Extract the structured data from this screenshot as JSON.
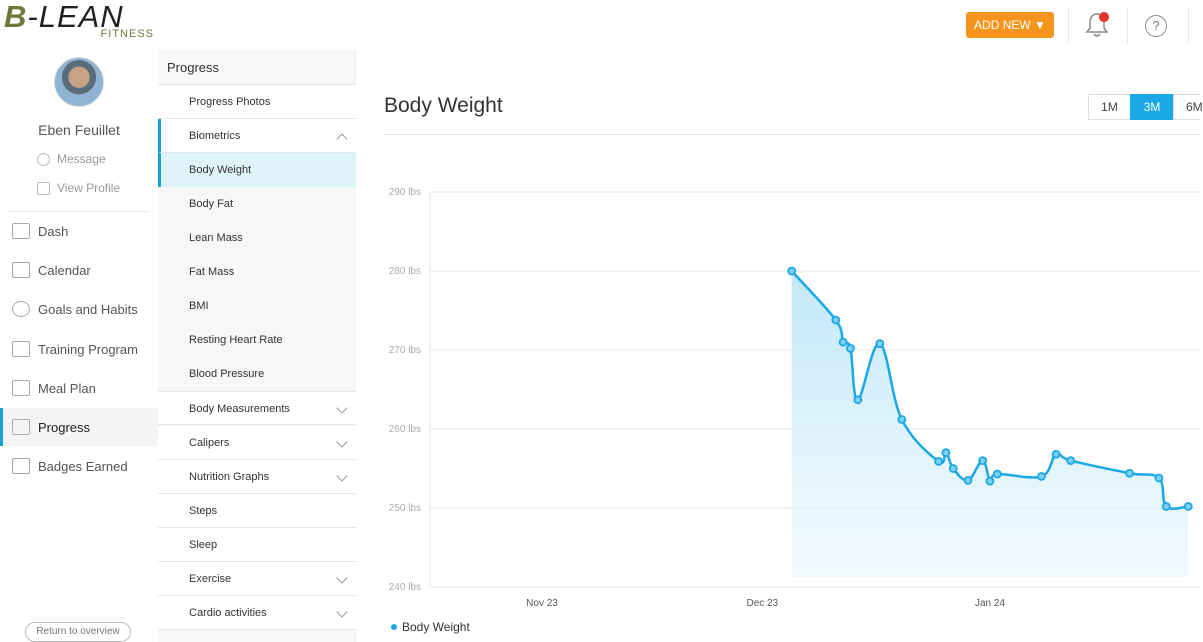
{
  "brand": {
    "main_b": "B",
    "main_rest": "-LEAN",
    "sub": "FITNESS"
  },
  "user": {
    "name": "Eben Feuillet",
    "message": "Message",
    "view_profile": "View Profile"
  },
  "nav": [
    {
      "label": "Dash",
      "icon": "rocket-icon"
    },
    {
      "label": "Calendar",
      "icon": "calendar-icon"
    },
    {
      "label": "Goals and Habits",
      "icon": "target-icon"
    },
    {
      "label": "Training Program",
      "icon": "book-icon"
    },
    {
      "label": "Meal Plan",
      "icon": "utensils-icon"
    },
    {
      "label": "Progress",
      "icon": "chart-line-icon",
      "active": true
    },
    {
      "label": "Badges Earned",
      "icon": "grid-icon"
    }
  ],
  "return_overview": "Return to overview",
  "submenu": {
    "header": "Progress",
    "items": [
      {
        "label": "Progress Photos"
      },
      {
        "label": "Biometrics",
        "chevron": "up"
      },
      {
        "label": "Body Weight",
        "active": true
      },
      {
        "label": "Body Fat"
      },
      {
        "label": "Lean Mass"
      },
      {
        "label": "Fat Mass"
      },
      {
        "label": "BMI"
      },
      {
        "label": "Resting Heart Rate"
      },
      {
        "label": "Blood Pressure"
      },
      {
        "label": "Body Measurements",
        "chevron": "down"
      },
      {
        "label": "Calipers",
        "chevron": "down"
      },
      {
        "label": "Nutrition Graphs",
        "chevron": "down"
      },
      {
        "label": "Steps"
      },
      {
        "label": "Sleep"
      },
      {
        "label": "Exercise",
        "chevron": "down"
      },
      {
        "label": "Cardio activities",
        "chevron": "down"
      }
    ]
  },
  "topbar": {
    "add_new": "ADD NEW ▼",
    "help": "?"
  },
  "main": {
    "title": "Body Weight",
    "ranges": [
      {
        "label": "1M"
      },
      {
        "label": "3M",
        "active": true
      },
      {
        "label": "6M"
      }
    ]
  },
  "colors": {
    "accent": "#1ba8e8",
    "add_new": "#f7941d",
    "notification": "#e6332a"
  },
  "chart_data": {
    "type": "area",
    "title": "",
    "xlabel": "",
    "ylabel": "",
    "ylim": [
      240,
      290
    ],
    "yticks": [
      240,
      250,
      260,
      270,
      280,
      290
    ],
    "ytick_labels": [
      "240 lbs",
      "250 lbs",
      "260 lbs",
      "270 lbs",
      "280 lbs",
      "290 lbs"
    ],
    "xticks": [
      {
        "label": "Nov 23",
        "day": -8
      },
      {
        "label": "Dec 23",
        "day": 22
      },
      {
        "label": "Jan 24",
        "day": 53
      }
    ],
    "grid": true,
    "legend": "bottom-left",
    "series": [
      {
        "name": "Body Weight",
        "x": [
          26,
          32,
          33,
          34,
          35,
          38,
          41,
          46,
          47,
          48,
          50,
          52,
          53,
          54,
          60,
          62,
          64,
          72,
          76,
          77,
          80
        ],
        "y": [
          280,
          273.8,
          271,
          270.2,
          263.7,
          270.8,
          261.2,
          255.9,
          257,
          255,
          253.5,
          256,
          253.4,
          254.3,
          254,
          256.8,
          256,
          254.4,
          253.8,
          250.2,
          250.2
        ]
      }
    ]
  }
}
